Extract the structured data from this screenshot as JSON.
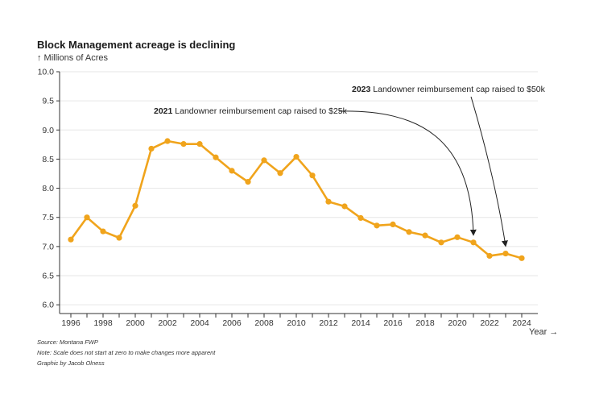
{
  "chart_data": {
    "type": "line",
    "title": "Block Management acreage is declining",
    "ylabel": "↑ Millions of Acres",
    "xlabel": "Year →",
    "x": [
      1996,
      1997,
      1998,
      1999,
      2000,
      2001,
      2002,
      2003,
      2004,
      2005,
      2006,
      2007,
      2008,
      2009,
      2010,
      2011,
      2012,
      2013,
      2014,
      2015,
      2016,
      2017,
      2018,
      2019,
      2020,
      2021,
      2022,
      2023,
      2024
    ],
    "series": [
      {
        "name": "Block Management acreage",
        "color": "#f0a41c",
        "values": [
          7.12,
          7.5,
          7.26,
          7.15,
          7.7,
          8.68,
          8.81,
          8.76,
          8.76,
          8.53,
          8.3,
          8.11,
          8.48,
          8.26,
          8.54,
          8.22,
          7.77,
          7.69,
          7.49,
          7.36,
          7.38,
          7.25,
          7.19,
          7.07,
          7.16,
          7.07,
          6.84,
          6.88,
          6.8
        ]
      }
    ],
    "xticks": [
      "1996",
      "1998",
      "2000",
      "2002",
      "2004",
      "2006",
      "2008",
      "2010",
      "2012",
      "2014",
      "2016",
      "2018",
      "2020",
      "2022",
      "2024"
    ],
    "yticks": [
      "6.0",
      "6.5",
      "7.0",
      "7.5",
      "8.0",
      "8.5",
      "9.0",
      "9.5",
      "10.0"
    ],
    "xlim": [
      1995.3,
      2025.0
    ],
    "ylim": [
      5.85,
      10.0
    ],
    "grid": true,
    "annotations": [
      {
        "year_label": "2021",
        "text": "Landowner reimbursement cap raised to $25k",
        "target_year": 2021
      },
      {
        "year_label": "2023",
        "text": "Landowner reimbursement cap raised to $50k",
        "target_year": 2023
      }
    ]
  },
  "footer": {
    "source": "Source: Montana FWP",
    "note": "Note: Scale does not start at zero to make changes more apparent",
    "credit": "Graphic by Jacob Olness"
  },
  "colors": {
    "line": "#f0a41c",
    "grid": "#e6e6e6",
    "axis": "#333333"
  }
}
